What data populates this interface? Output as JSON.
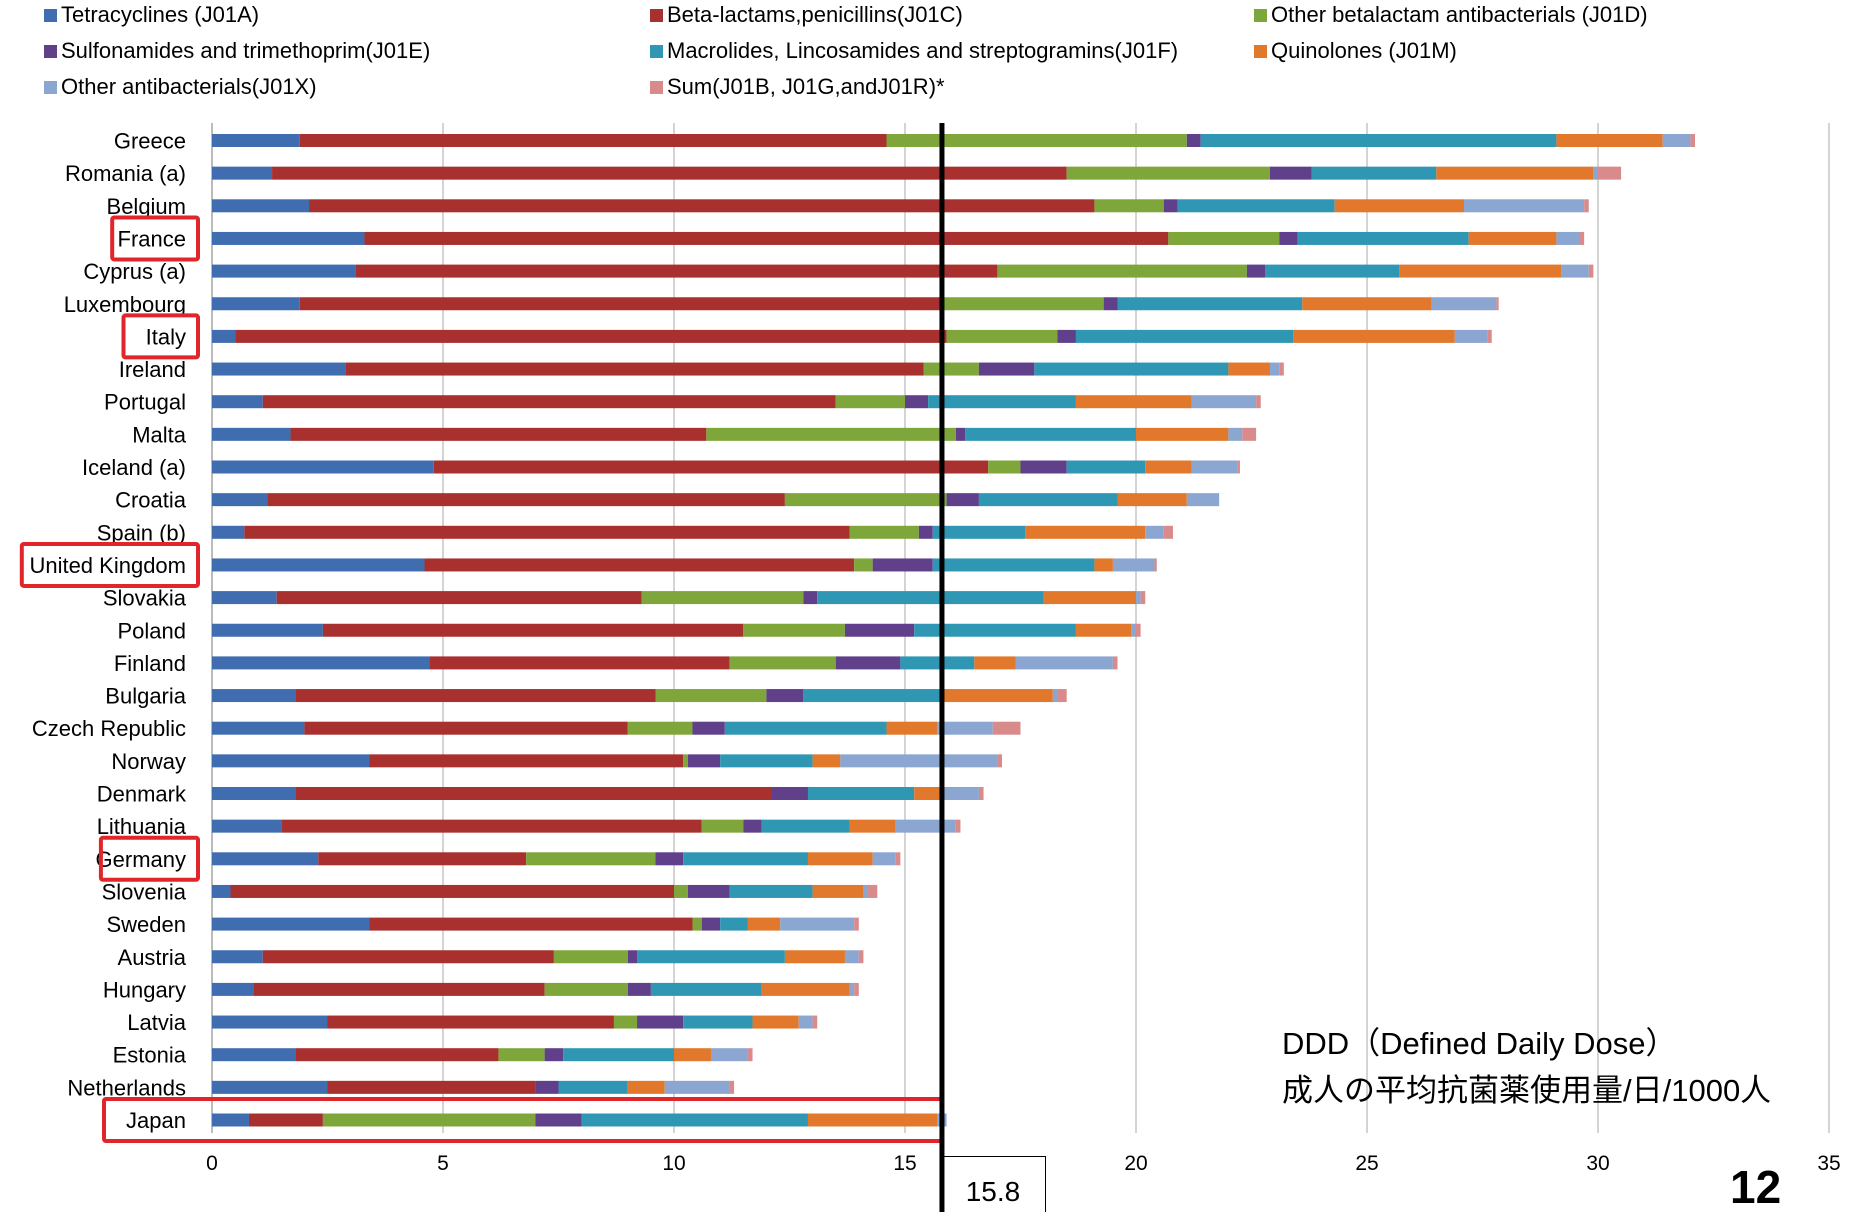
{
  "chart_data": {
    "type": "bar",
    "orientation": "horizontal",
    "stacked": true,
    "legend_position": "top",
    "grid": true,
    "xlim": [
      0,
      35
    ],
    "x_ticks": [
      0,
      5,
      10,
      15,
      20,
      25,
      30,
      35
    ],
    "series": [
      {
        "name": "Tetracyclines (J01A)",
        "color": "#3f6db0"
      },
      {
        "name": "Beta-lactams,penicillins(J01C)",
        "color": "#a8302e"
      },
      {
        "name": "Other betalactam antibacterials (J01D)",
        "color": "#7ea63b"
      },
      {
        "name": "Sulfonamides and trimethoprim(J01E)",
        "color": "#60408a"
      },
      {
        "name": "Macrolides, Lincosamides and streptogramins(J01F)",
        "color": "#2f97b4"
      },
      {
        "name": "Quinolones (J01M)",
        "color": "#e1782b"
      },
      {
        "name": "Other antibacterials(J01X)",
        "color": "#8aa6d1"
      },
      {
        "name": "Sum(J01B, J01G,andJ01R)*",
        "color": "#d98b8b"
      }
    ],
    "categories": [
      "Greece",
      "Romania (a)",
      "Belgium",
      "France",
      "Cyprus (a)",
      "Luxembourg",
      "Italy",
      "Ireland",
      "Portugal",
      "Malta",
      "Iceland (a)",
      "Croatia",
      "Spain (b)",
      "United Kingdom",
      "Slovakia",
      "Poland",
      "Finland",
      "Bulgaria",
      "Czech Republic",
      "Norway",
      "Denmark",
      "Lithuania",
      "Germany",
      "Slovenia",
      "Sweden",
      "Austria",
      "Hungary",
      "Latvia",
      "Estonia",
      "Netherlands",
      "Japan"
    ],
    "values": [
      [
        1.9,
        12.7,
        6.5,
        0.3,
        7.7,
        2.3,
        0.6,
        0.1
      ],
      [
        1.3,
        17.2,
        4.4,
        0.9,
        2.7,
        3.4,
        0.1,
        0.5
      ],
      [
        2.1,
        17.0,
        1.5,
        0.3,
        3.4,
        2.8,
        2.6,
        0.1
      ],
      [
        3.3,
        17.4,
        2.4,
        0.4,
        3.7,
        1.9,
        0.5,
        0.1
      ],
      [
        3.1,
        13.9,
        5.4,
        0.4,
        2.9,
        3.5,
        0.6,
        0.1
      ],
      [
        1.9,
        13.9,
        3.5,
        0.3,
        4.0,
        2.8,
        1.4,
        0.05
      ],
      [
        0.5,
        15.4,
        2.4,
        0.4,
        4.7,
        3.5,
        0.7,
        0.1
      ],
      [
        2.9,
        12.5,
        1.2,
        1.2,
        4.2,
        0.9,
        0.2,
        0.1
      ],
      [
        1.1,
        12.4,
        1.5,
        0.5,
        3.2,
        2.5,
        1.4,
        0.1
      ],
      [
        1.7,
        9.0,
        5.4,
        0.2,
        3.7,
        2.0,
        0.3,
        0.3
      ],
      [
        4.8,
        12.0,
        0.7,
        1.0,
        1.7,
        1.0,
        1.0,
        0.05
      ],
      [
        1.2,
        11.2,
        3.5,
        0.7,
        3.0,
        1.5,
        0.7,
        0.0
      ],
      [
        0.7,
        13.1,
        1.5,
        0.3,
        2.0,
        2.6,
        0.4,
        0.2
      ],
      [
        4.6,
        9.3,
        0.4,
        1.3,
        3.5,
        0.4,
        0.9,
        0.05
      ],
      [
        1.4,
        7.9,
        3.5,
        0.3,
        4.9,
        2.0,
        0.1,
        0.1
      ],
      [
        2.4,
        9.1,
        2.2,
        1.5,
        3.5,
        1.2,
        0.1,
        0.1
      ],
      [
        4.7,
        6.5,
        2.3,
        1.4,
        1.6,
        0.9,
        2.1,
        0.1
      ],
      [
        1.8,
        7.8,
        2.4,
        0.8,
        3.0,
        2.4,
        0.1,
        0.2
      ],
      [
        2.0,
        7.0,
        1.4,
        0.7,
        3.5,
        1.1,
        1.2,
        0.6
      ],
      [
        3.4,
        6.8,
        0.1,
        0.7,
        2.0,
        0.6,
        3.4,
        0.1
      ],
      [
        1.8,
        10.3,
        0.0,
        0.8,
        2.3,
        0.6,
        0.8,
        0.1
      ],
      [
        1.5,
        9.1,
        0.9,
        0.4,
        1.9,
        1.0,
        1.3,
        0.1
      ],
      [
        2.3,
        4.5,
        2.8,
        0.6,
        2.7,
        1.4,
        0.5,
        0.1
      ],
      [
        0.4,
        9.6,
        0.3,
        0.9,
        1.8,
        1.1,
        0.1,
        0.2
      ],
      [
        3.4,
        7.0,
        0.2,
        0.4,
        0.6,
        0.7,
        1.6,
        0.1
      ],
      [
        1.1,
        6.3,
        1.6,
        0.2,
        3.2,
        1.3,
        0.3,
        0.1
      ],
      [
        0.9,
        6.3,
        1.8,
        0.5,
        2.4,
        1.9,
        0.1,
        0.1
      ],
      [
        2.5,
        6.2,
        0.5,
        1.0,
        1.5,
        1.0,
        0.3,
        0.1
      ],
      [
        1.8,
        4.4,
        1.0,
        0.4,
        2.4,
        0.8,
        0.8,
        0.1
      ],
      [
        2.5,
        4.5,
        0.0,
        0.5,
        1.5,
        0.8,
        1.4,
        0.1
      ],
      [
        0.8,
        1.6,
        4.6,
        1.0,
        4.9,
        2.8,
        0.2,
        0.0
      ]
    ],
    "highlighted_categories": [
      "France",
      "Italy",
      "United Kingdom",
      "Germany",
      "Japan"
    ],
    "reference_line": {
      "value": 15.8,
      "label": "15.8"
    },
    "annotation": [
      "DDD（Defined Daily Dose）",
      "成人の平均抗菌薬使用量/日/1000人"
    ]
  },
  "page_number": "12"
}
